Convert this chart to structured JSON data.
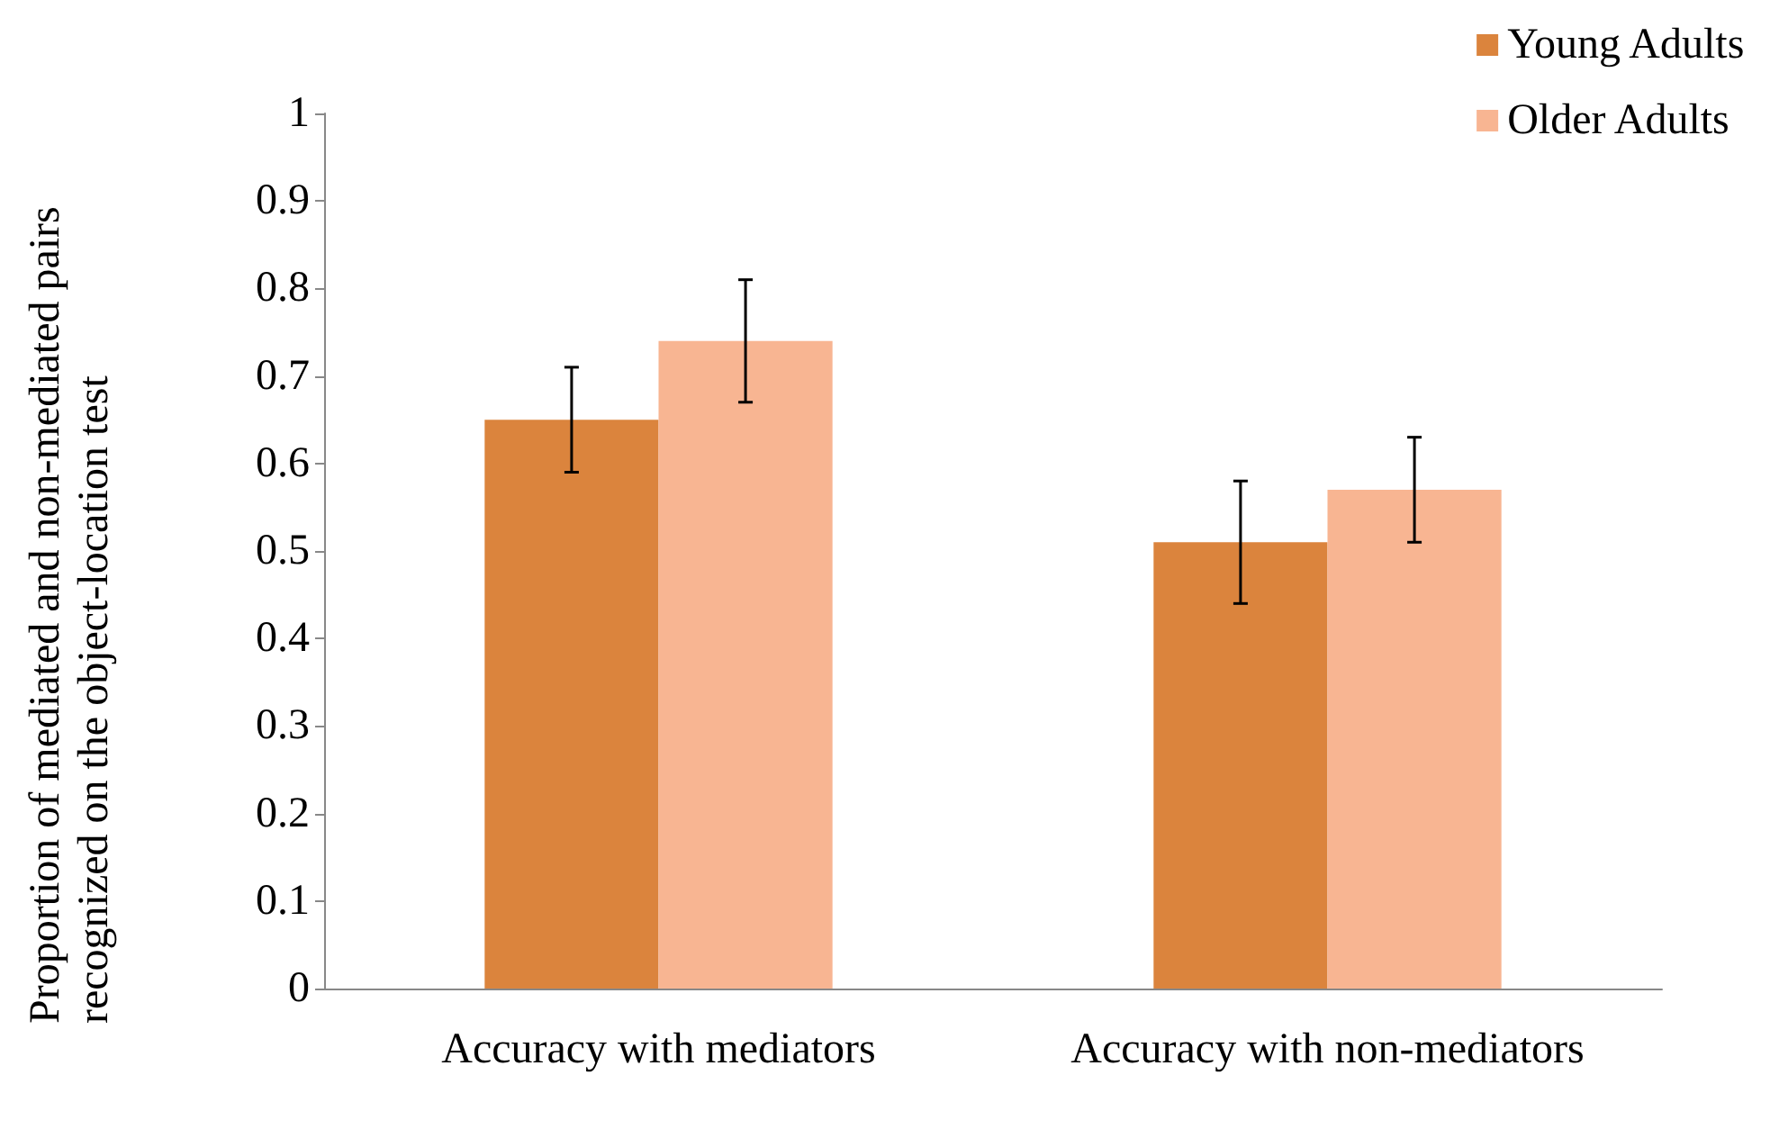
{
  "chart_data": {
    "type": "bar",
    "ylabel": "Proportion of mediated and non-mediated pairs recognized on the object-location test",
    "categories": [
      "Accuracy with mediators",
      "Accuracy with non-mediators"
    ],
    "series": [
      {
        "name": "Young Adults",
        "color": "#db843d",
        "values": [
          0.65,
          0.51
        ],
        "errors": [
          0.06,
          0.07
        ]
      },
      {
        "name": "Older Adults",
        "color": "#f8b592",
        "values": [
          0.74,
          0.57
        ],
        "errors": [
          0.07,
          0.06
        ]
      }
    ],
    "ylim": [
      0,
      1
    ],
    "yticks": [
      0,
      0.1,
      0.2,
      0.3,
      0.4,
      0.5,
      0.6,
      0.7,
      0.8,
      0.9,
      1
    ],
    "grid": false,
    "legend": "top right"
  }
}
